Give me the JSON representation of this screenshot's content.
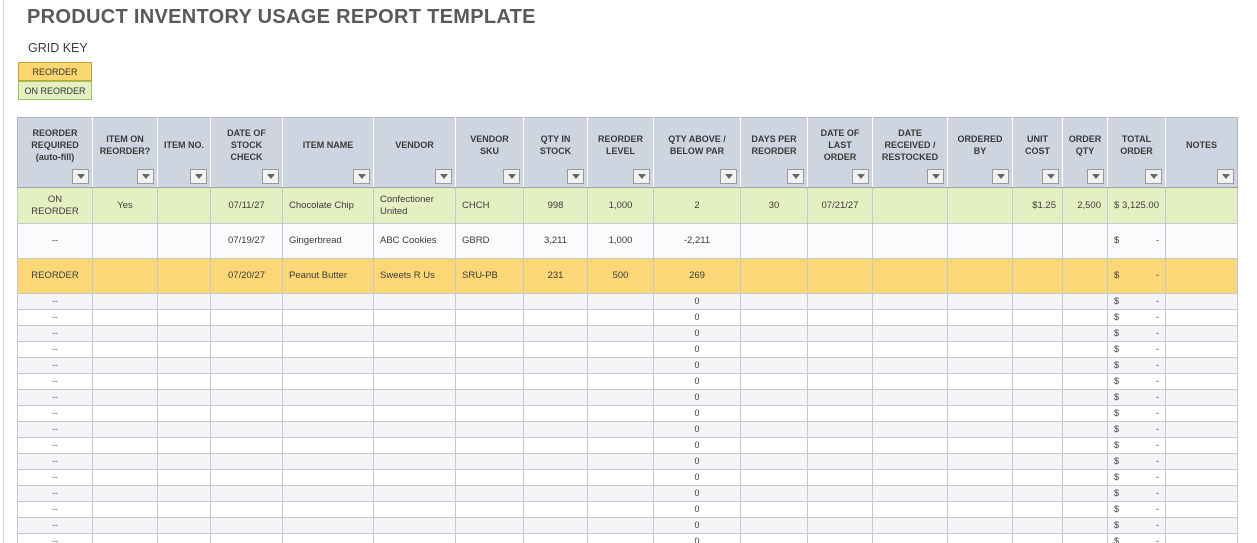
{
  "page": {
    "title": "PRODUCT INVENTORY USAGE REPORT TEMPLATE",
    "grid_key": {
      "label": "GRID KEY",
      "items": [
        {
          "label": "REORDER"
        },
        {
          "label": "ON REORDER"
        }
      ]
    }
  },
  "table": {
    "headers": [
      "REORDER REQUIRED (auto-fill)",
      "ITEM ON REORDER?",
      "ITEM NO.",
      "DATE OF STOCK CHECK",
      "ITEM NAME",
      "VENDOR",
      "VENDOR SKU",
      "QTY IN STOCK",
      "REORDER LEVEL",
      "QTY ABOVE / BELOW PAR",
      "DAYS PER REORDER",
      "DATE OF LAST ORDER",
      "DATE RECEIVED / RESTOCKED",
      "ORDERED BY",
      "UNIT COST",
      "ORDER QTY",
      "TOTAL ORDER",
      "NOTES"
    ],
    "rows": [
      {
        "highlight": "green",
        "reorder_required": "ON REORDER",
        "item_on_reorder": "Yes",
        "item_no": "",
        "date_of_stock_check": "07/11/27",
        "item_name": "Chocolate Chip",
        "vendor": "Confectioner United",
        "vendor_sku": "CHCH",
        "qty_in_stock": "998",
        "reorder_level": "1,000",
        "qty_above_below_par": "2",
        "days_per_reorder": "30",
        "date_of_last_order": "07/21/27",
        "date_received_restocked": "",
        "ordered_by": "",
        "unit_cost": "$1.25",
        "order_qty": "2,500",
        "total_order_currency": "$",
        "total_order_amount": "3,125.00",
        "notes": ""
      },
      {
        "highlight": "plain",
        "reorder_required": "--",
        "item_on_reorder": "",
        "item_no": "",
        "date_of_stock_check": "07/19/27",
        "item_name": "Gingerbread",
        "vendor": "ABC Cookies",
        "vendor_sku": "GBRD",
        "qty_in_stock": "3,211",
        "reorder_level": "1,000",
        "qty_above_below_par": "-2,211",
        "days_per_reorder": "",
        "date_of_last_order": "",
        "date_received_restocked": "",
        "ordered_by": "",
        "unit_cost": "",
        "order_qty": "",
        "total_order_currency": "$",
        "total_order_amount": "-",
        "notes": ""
      },
      {
        "highlight": "orange",
        "reorder_required": "REORDER",
        "item_on_reorder": "",
        "item_no": "",
        "date_of_stock_check": "07/20/27",
        "item_name": "Peanut Butter",
        "vendor": "Sweets R Us",
        "vendor_sku": "SRU-PB",
        "qty_in_stock": "231",
        "reorder_level": "500",
        "qty_above_below_par": "269",
        "days_per_reorder": "",
        "date_of_last_order": "",
        "date_received_restocked": "",
        "ordered_by": "",
        "unit_cost": "",
        "order_qty": "",
        "total_order_currency": "$",
        "total_order_amount": "-",
        "notes": ""
      }
    ],
    "empty_row": {
      "reorder_required": "--",
      "item_on_reorder": "",
      "item_no": "",
      "date_of_stock_check": "",
      "item_name": "",
      "vendor": "",
      "vendor_sku": "",
      "qty_in_stock": "",
      "reorder_level": "",
      "qty_above_below_par": "0",
      "days_per_reorder": "",
      "date_of_last_order": "",
      "date_received_restocked": "",
      "ordered_by": "",
      "unit_cost": "",
      "order_qty": "",
      "total_order_currency": "$",
      "total_order_amount": "-",
      "notes": ""
    },
    "empty_row_count": 16
  },
  "colors": {
    "title_text": "#595959",
    "header_bg": "#cfd5e0",
    "row_green": "#e4f0c2",
    "row_orange": "#fcd778",
    "row_plain": "#fafbfc",
    "row_band": "#f3f4f6",
    "gridline": "#c6cad0",
    "key_reorder_bg": "#fcd66e",
    "key_reorder_border": "#bba43c",
    "key_on_reorder_bg": "#e3f0c1",
    "key_on_reorder_border": "#a2c05d"
  }
}
